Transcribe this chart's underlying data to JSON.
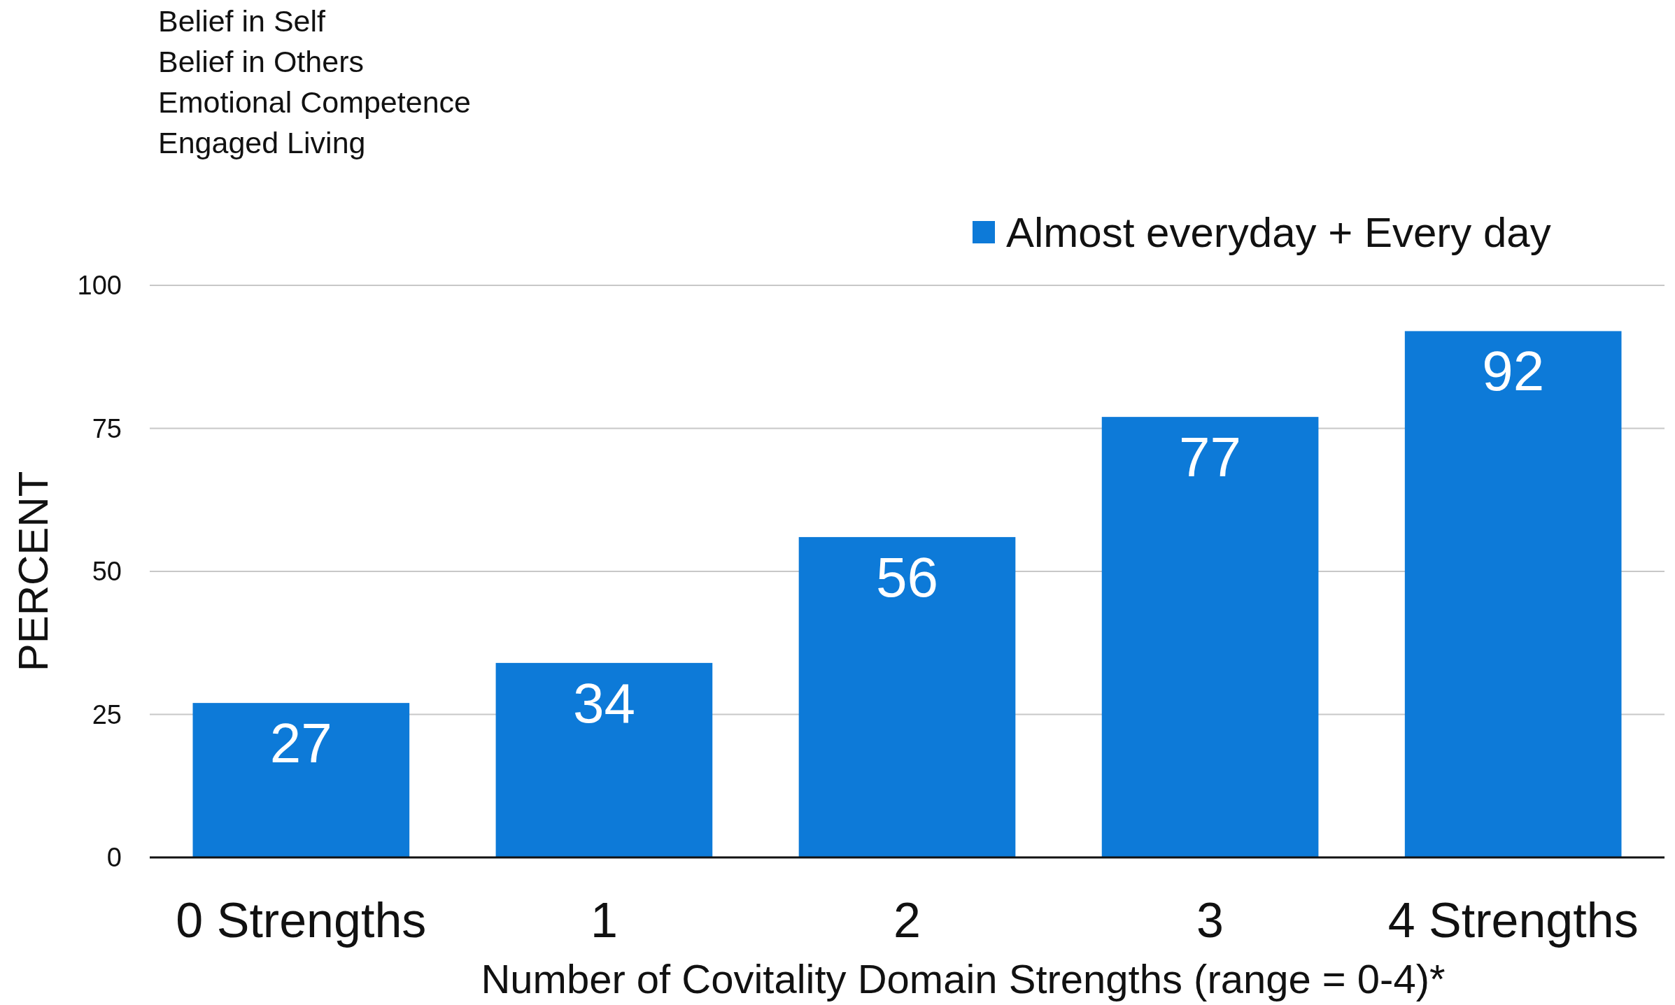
{
  "chart_data": {
    "type": "bar",
    "annotations": [
      "Belief in Self",
      "Belief in Others",
      "Emotional Competence",
      "Engaged Living"
    ],
    "xlabel": "Number of Covitality Domain Strengths (range = 0-4)*",
    "ylabel": "PERCENT",
    "categories": [
      "0 Strengths",
      "1",
      "2",
      "3",
      "4 Strengths"
    ],
    "series": [
      {
        "name": "Almost everyday + Every day",
        "color": "#0d7ad8",
        "values": [
          27,
          34,
          56,
          77,
          92
        ]
      }
    ],
    "ylim": [
      0,
      100
    ],
    "yticks": [
      0,
      25,
      50,
      75,
      100
    ],
    "grid": "y",
    "legend": "top right",
    "data_labels": true
  }
}
